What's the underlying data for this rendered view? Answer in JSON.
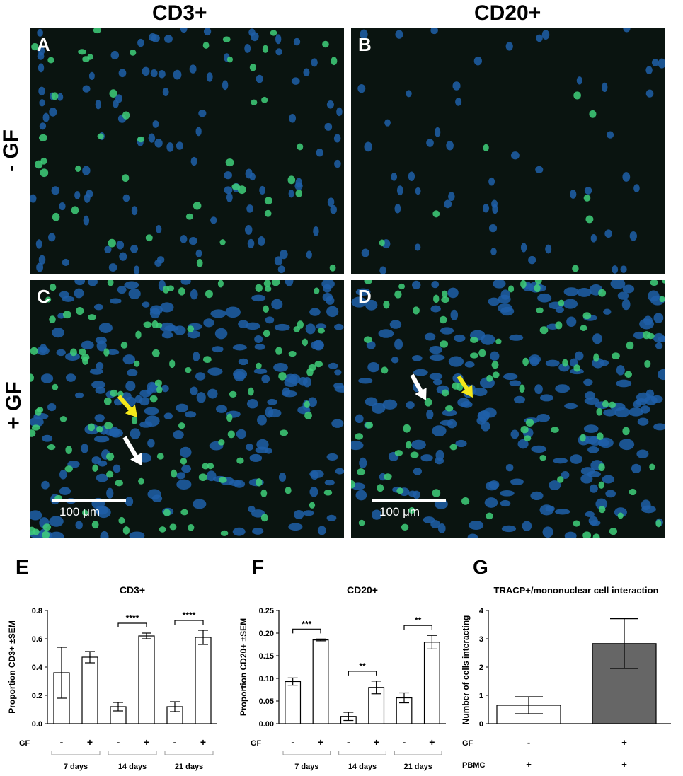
{
  "columns": [
    "CD3+",
    "CD20+"
  ],
  "rows": [
    "- GF",
    "+ GF"
  ],
  "panels": [
    {
      "label": "A",
      "column": "CD3+",
      "row": "- GF"
    },
    {
      "label": "B",
      "column": "CD20+",
      "row": "- GF"
    },
    {
      "label": "C",
      "column": "CD3+",
      "row": "+ GF",
      "scale_bar": "100 μm"
    },
    {
      "label": "D",
      "column": "CD20+",
      "row": "+ GF",
      "scale_bar": "100 μm"
    }
  ],
  "colors": {
    "nucleus": "#1f5fa8",
    "positive": "#3fcf7a",
    "yellow_arrow": "#f4e81a",
    "white_arrow": "#ffffff",
    "bar_gray": "#666666"
  },
  "chart_data": [
    {
      "type": "bar",
      "panel": "E",
      "title": "CD3+",
      "ylabel": "Proportion CD3+ ±SEM",
      "ylim": [
        0,
        0.8
      ],
      "yticks": [
        "0.0",
        "0.2",
        "0.4",
        "0.6",
        "0.8"
      ],
      "gf_row_label": "GF",
      "categories": [
        "-",
        "+",
        "-",
        "+",
        "-",
        "+"
      ],
      "groups": [
        "7 days",
        "14 days",
        "21 days"
      ],
      "values": [
        0.36,
        0.47,
        0.12,
        0.62,
        0.12,
        0.61
      ],
      "errors": [
        0.18,
        0.04,
        0.03,
        0.02,
        0.035,
        0.05
      ],
      "significance": [
        {
          "pair": [
            2,
            3
          ],
          "label": "****"
        },
        {
          "pair": [
            4,
            5
          ],
          "label": "****"
        }
      ]
    },
    {
      "type": "bar",
      "panel": "F",
      "title": "CD20+",
      "ylabel": "Proportion CD20+ ±SEM",
      "ylim": [
        0,
        0.25
      ],
      "yticks": [
        "0.00",
        "0.05",
        "0.10",
        "0.15",
        "0.20",
        "0.25"
      ],
      "gf_row_label": "GF",
      "categories": [
        "-",
        "+",
        "-",
        "+",
        "-",
        "+"
      ],
      "groups": [
        "7 days",
        "14 days",
        "21 days"
      ],
      "values": [
        0.093,
        0.185,
        0.016,
        0.08,
        0.057,
        0.18
      ],
      "errors": [
        0.008,
        0.002,
        0.009,
        0.014,
        0.011,
        0.015
      ],
      "significance": [
        {
          "pair": [
            0,
            1
          ],
          "label": "***"
        },
        {
          "pair": [
            2,
            3
          ],
          "label": "**"
        },
        {
          "pair": [
            4,
            5
          ],
          "label": "**"
        }
      ]
    },
    {
      "type": "bar",
      "panel": "G",
      "title": "TRACP+/mononuclear cell interaction",
      "ylabel": "Number of cells interacting",
      "ylim": [
        0,
        4
      ],
      "yticks": [
        "0",
        "1",
        "2",
        "3",
        "4"
      ],
      "row_labels": [
        "GF",
        "PBMC"
      ],
      "gf": [
        "-",
        "+"
      ],
      "pbmc": [
        "+",
        "+"
      ],
      "values": [
        0.65,
        2.83
      ],
      "errors": [
        0.3,
        0.88
      ],
      "fills": [
        "#ffffff",
        "#666666"
      ]
    }
  ]
}
